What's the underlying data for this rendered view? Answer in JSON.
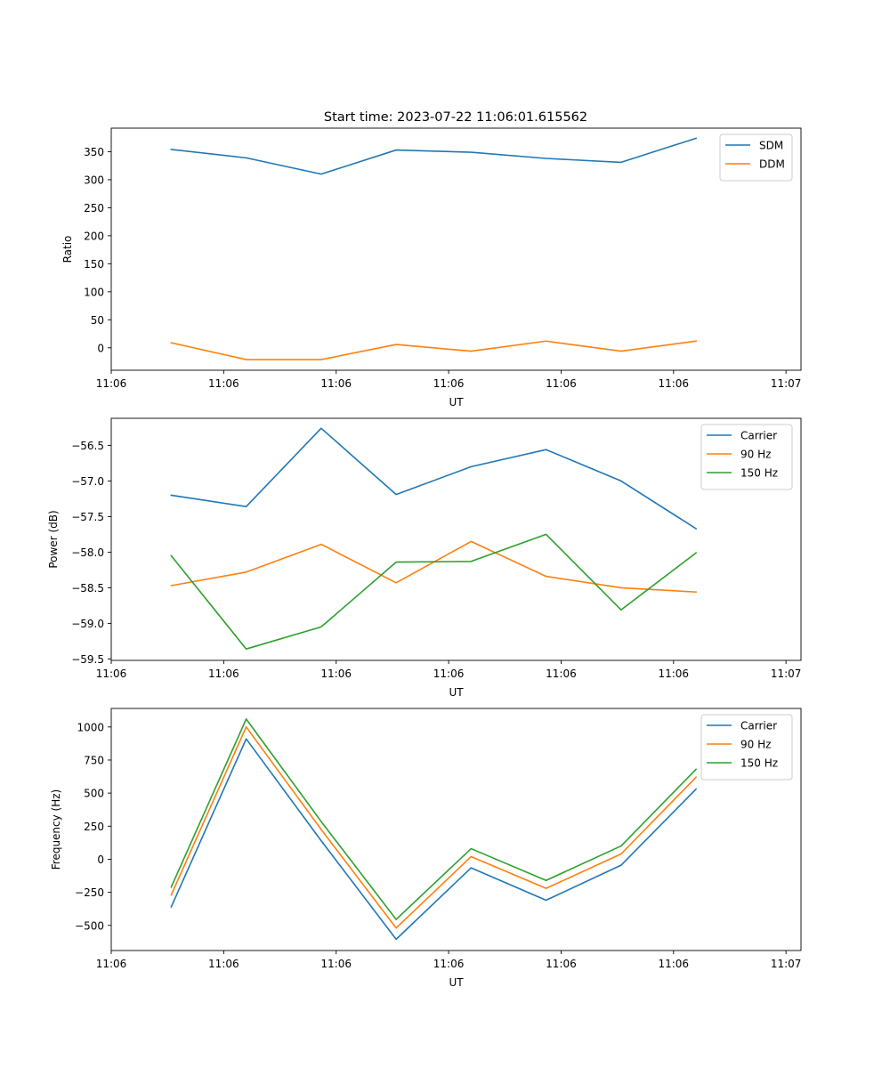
{
  "figure": {
    "suptitle": "Start time: 2023-07-22 11:06:01.615562"
  },
  "chart_data": [
    {
      "type": "line",
      "title": "Start time: 2023-07-22 11:06:01.615562",
      "xlabel": "UT",
      "ylabel": "Ratio",
      "x": [
        1,
        2,
        3,
        4,
        5,
        6,
        7,
        8
      ],
      "xlim": [
        0.2,
        9.4
      ],
      "xticks": [
        0.2,
        1.7,
        3.2,
        4.7,
        6.2,
        7.7,
        9.2
      ],
      "xtick_labels": [
        "11:06",
        "11:06",
        "11:06",
        "11:06",
        "11:06",
        "11:06",
        "11:07"
      ],
      "ylim": [
        -40,
        392
      ],
      "yticks": [
        0,
        50,
        100,
        150,
        200,
        250,
        300,
        350
      ],
      "ytick_labels": [
        "0",
        "50",
        "100",
        "150",
        "200",
        "250",
        "300",
        "350"
      ],
      "legend_position": "top-right",
      "series": [
        {
          "name": "SDM",
          "color": "#1f77b4",
          "values": [
            354,
            339,
            310,
            353,
            349,
            338,
            331,
            374
          ]
        },
        {
          "name": "DDM",
          "color": "#ff7f0e",
          "values": [
            9,
            -21,
            -21,
            6,
            -6,
            12,
            -6,
            12
          ]
        }
      ]
    },
    {
      "type": "line",
      "xlabel": "UT",
      "ylabel": "Power (dB)",
      "x": [
        1,
        2,
        3,
        4,
        5,
        6,
        7,
        8
      ],
      "xlim": [
        0.2,
        9.4
      ],
      "xticks": [
        0.2,
        1.7,
        3.2,
        4.7,
        6.2,
        7.7,
        9.2
      ],
      "xtick_labels": [
        "11:06",
        "11:06",
        "11:06",
        "11:06",
        "11:06",
        "11:06",
        "11:07"
      ],
      "ylim": [
        -59.52,
        -56.12
      ],
      "yticks": [
        -59.5,
        -59.0,
        -58.5,
        -58.0,
        -57.5,
        -57.0,
        -56.5
      ],
      "ytick_labels": [
        "−59.5",
        "−59.0",
        "−58.5",
        "−58.0",
        "−57.5",
        "−57.0",
        "−56.5"
      ],
      "legend_position": "top-right",
      "series": [
        {
          "name": "Carrier",
          "color": "#1f77b4",
          "values": [
            -57.2,
            -57.36,
            -56.26,
            -57.19,
            -56.8,
            -56.56,
            -57.0,
            -57.67
          ]
        },
        {
          "name": "90 Hz",
          "color": "#ff7f0e",
          "values": [
            -58.47,
            -58.28,
            -57.89,
            -58.43,
            -57.85,
            -58.34,
            -58.5,
            -58.56
          ]
        },
        {
          "name": "150 Hz",
          "color": "#2ca02c",
          "values": [
            -58.05,
            -59.36,
            -59.05,
            -58.14,
            -58.13,
            -57.75,
            -58.81,
            -58.01
          ]
        }
      ]
    },
    {
      "type": "line",
      "xlabel": "UT",
      "ylabel": "Frequency (Hz)",
      "x": [
        1,
        2,
        3,
        4,
        5,
        6,
        7,
        8
      ],
      "xlim": [
        0.2,
        9.4
      ],
      "xticks": [
        0.2,
        1.7,
        3.2,
        4.7,
        6.2,
        7.7,
        9.2
      ],
      "xtick_labels": [
        "11:06",
        "11:06",
        "11:06",
        "11:06",
        "11:06",
        "11:06",
        "11:07"
      ],
      "ylim": [
        -690,
        1140
      ],
      "yticks": [
        -500,
        -250,
        0,
        250,
        500,
        750,
        1000
      ],
      "ytick_labels": [
        "−500",
        "−250",
        "0",
        "250",
        "500",
        "750",
        "1000"
      ],
      "legend_position": "top-right",
      "series": [
        {
          "name": "Carrier",
          "color": "#1f77b4",
          "values": [
            -360,
            910,
            140,
            -605,
            -65,
            -310,
            -45,
            530
          ]
        },
        {
          "name": "90 Hz",
          "color": "#ff7f0e",
          "values": [
            -270,
            1000,
            225,
            -520,
            20,
            -220,
            40,
            620
          ]
        },
        {
          "name": "150 Hz",
          "color": "#2ca02c",
          "values": [
            -210,
            1060,
            285,
            -455,
            80,
            -160,
            100,
            680
          ]
        }
      ]
    }
  ]
}
